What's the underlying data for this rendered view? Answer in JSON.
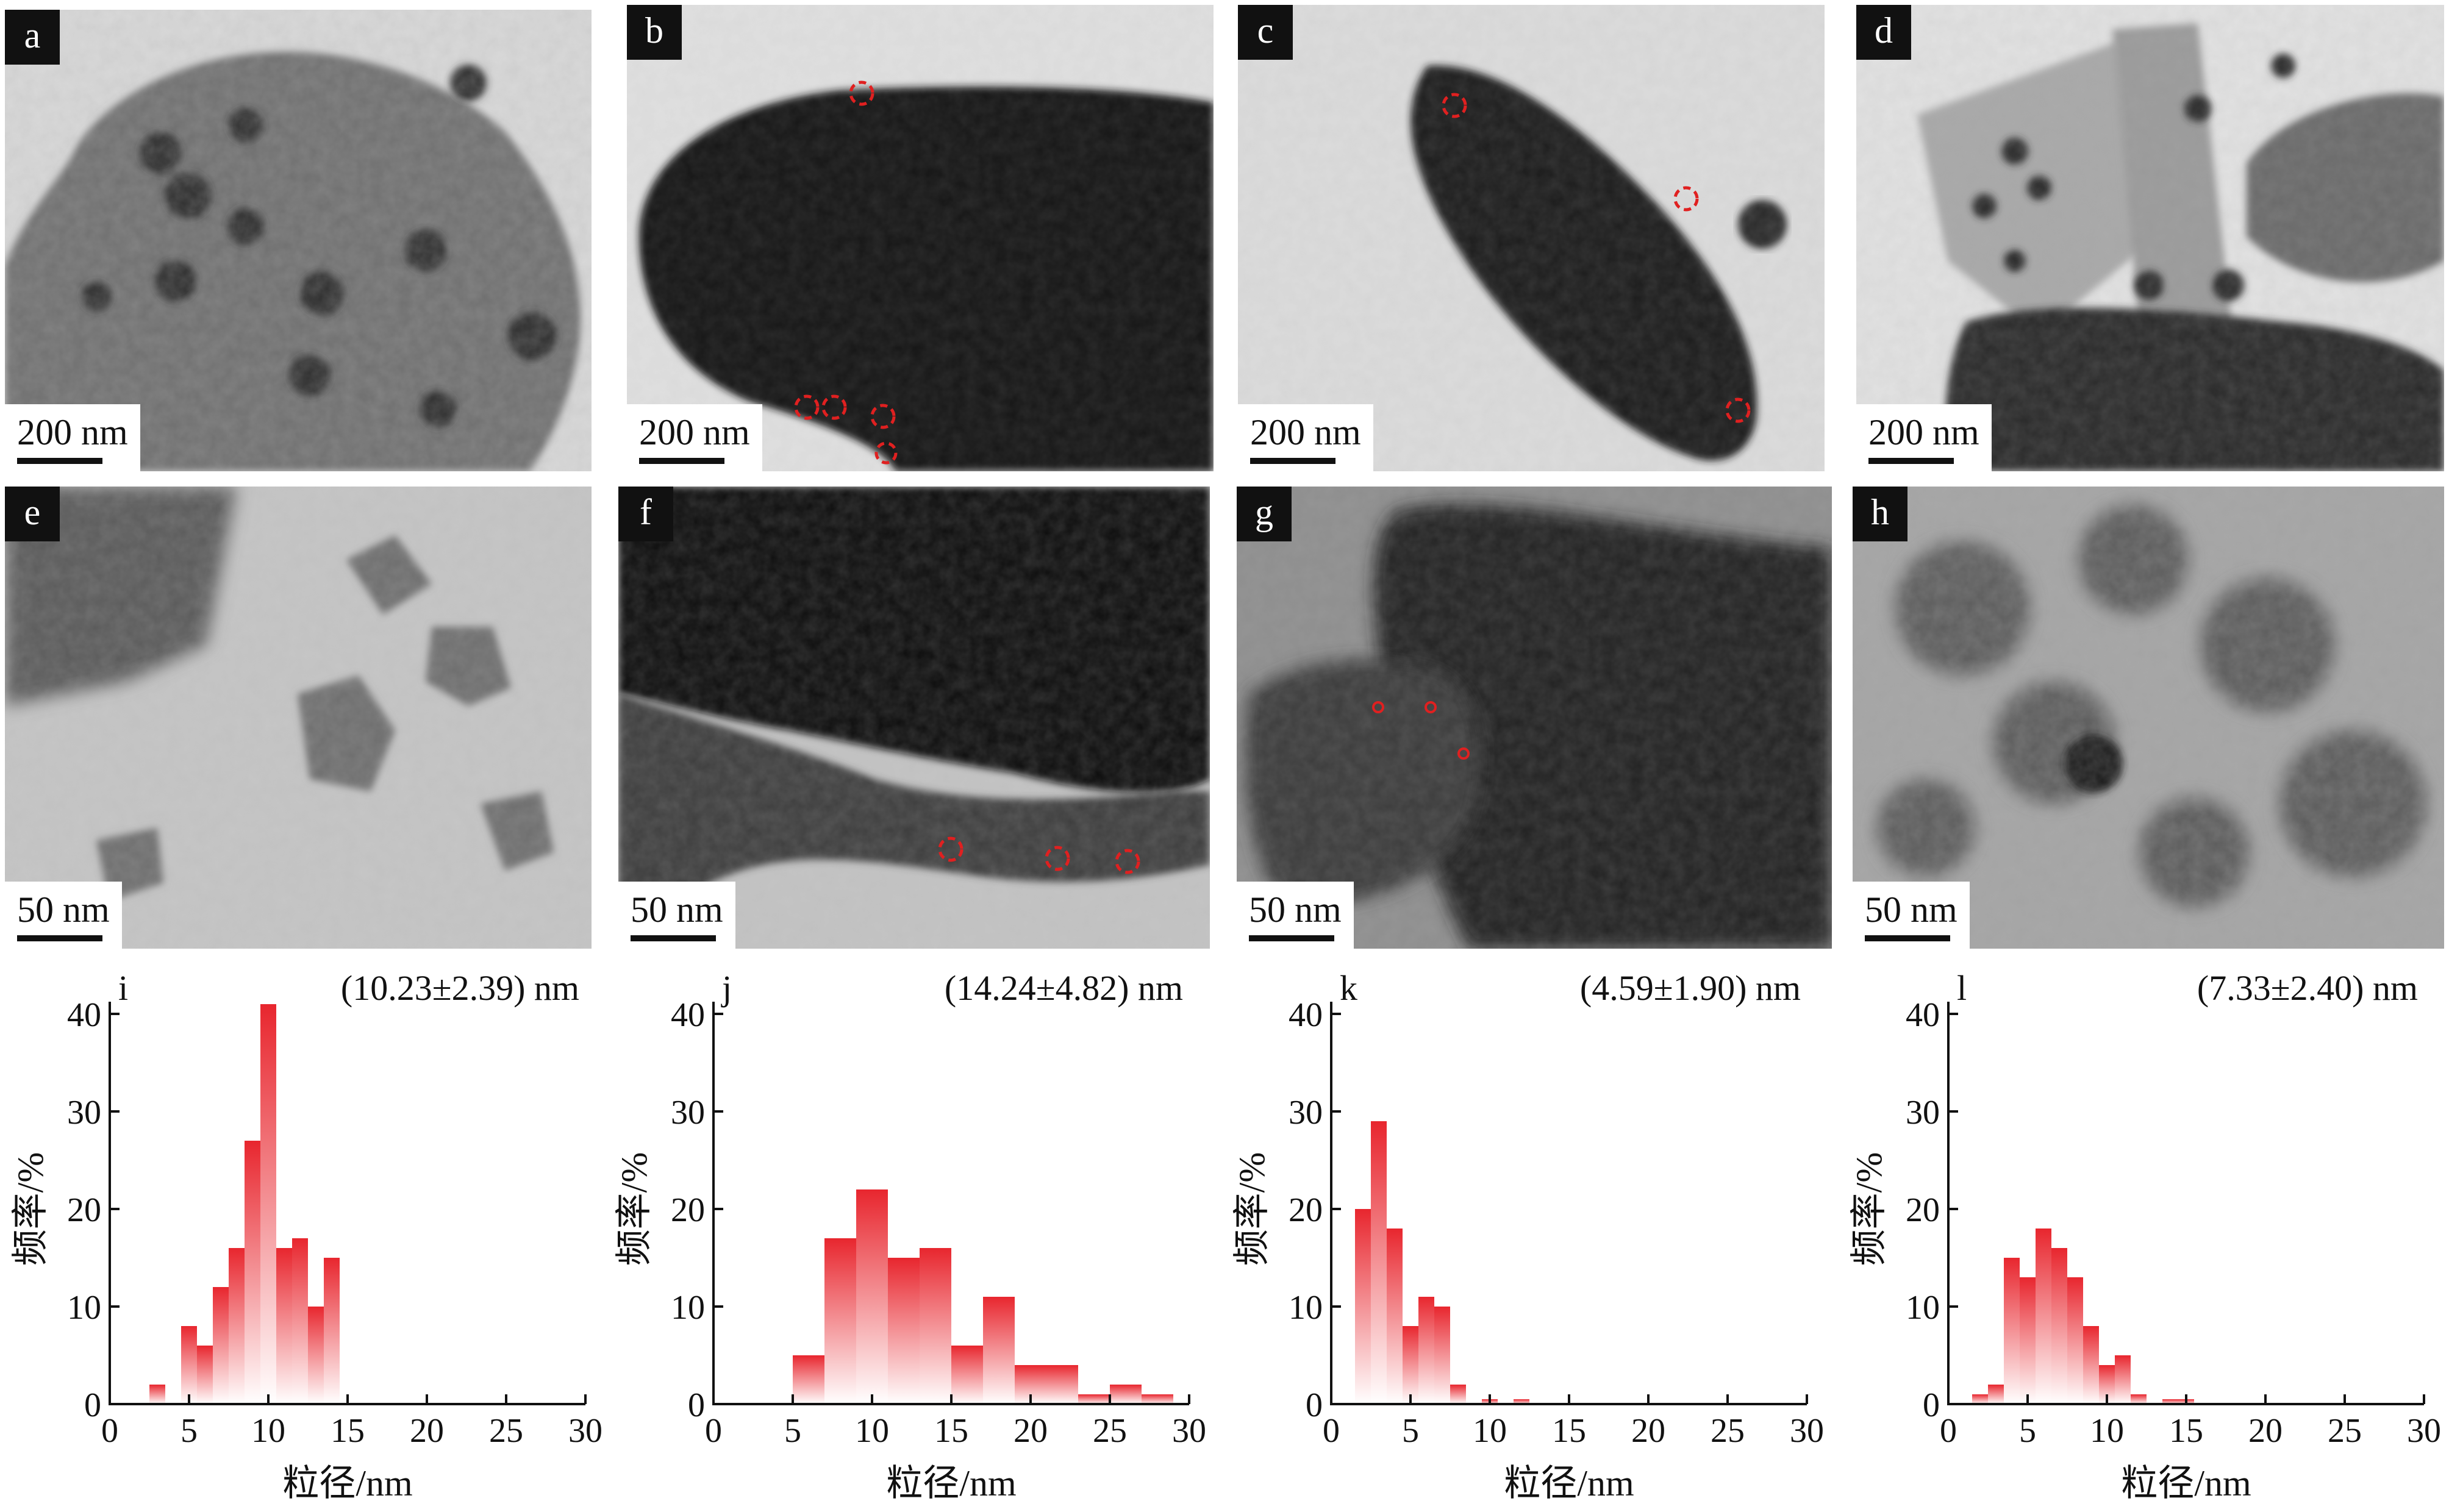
{
  "panels": [
    {
      "letter": "a",
      "scale_label": "200 nm"
    },
    {
      "letter": "b",
      "scale_label": "200 nm"
    },
    {
      "letter": "c",
      "scale_label": "200 nm"
    },
    {
      "letter": "d",
      "scale_label": "200 nm"
    },
    {
      "letter": "e",
      "scale_label": "50 nm"
    },
    {
      "letter": "f",
      "scale_label": "50 nm"
    },
    {
      "letter": "g",
      "scale_label": "50 nm"
    },
    {
      "letter": "h",
      "scale_label": "50 nm"
    }
  ],
  "colors": {
    "bar_top": "#e8262e",
    "bar_bottom": "#ffffff",
    "marker": "#e02020",
    "axis": "#111111"
  },
  "chart_data": [
    {
      "type": "bar",
      "panel": "i",
      "annotation": "(10.23±2.39) nm",
      "xlabel": "粒径/nm",
      "ylabel": "频率/%",
      "xlim": [
        0,
        30
      ],
      "ylim": [
        0,
        40
      ],
      "xticks": [
        0,
        5,
        10,
        15,
        20,
        25,
        30
      ],
      "yticks": [
        0,
        10,
        20,
        30,
        40
      ],
      "bin_width": 1,
      "x": [
        3,
        5,
        6,
        7,
        8,
        9,
        10,
        11,
        12,
        13,
        14
      ],
      "values": [
        2,
        8,
        6,
        12,
        16,
        27,
        41,
        16,
        17,
        10,
        15
      ]
    },
    {
      "type": "bar",
      "panel": "j",
      "annotation": "(14.24±4.82) nm",
      "xlabel": "粒径/nm",
      "ylabel": "频率/%",
      "xlim": [
        0,
        30
      ],
      "ylim": [
        0,
        40
      ],
      "xticks": [
        0,
        5,
        10,
        15,
        20,
        25,
        30
      ],
      "yticks": [
        0,
        10,
        20,
        30,
        40
      ],
      "bin_width": 2,
      "x": [
        6,
        8,
        10,
        12,
        14,
        16,
        18,
        20,
        22,
        24,
        26,
        28
      ],
      "values": [
        5,
        17,
        22,
        15,
        16,
        6,
        11,
        4,
        4,
        1,
        2,
        1
      ]
    },
    {
      "type": "bar",
      "panel": "k",
      "annotation": "(4.59±1.90) nm",
      "xlabel": "粒径/nm",
      "ylabel": "频率/%",
      "xlim": [
        0,
        30
      ],
      "ylim": [
        0,
        40
      ],
      "xticks": [
        0,
        5,
        10,
        15,
        20,
        25,
        30
      ],
      "yticks": [
        0,
        10,
        20,
        30,
        40
      ],
      "bin_width": 1,
      "x": [
        2,
        3,
        4,
        5,
        6,
        7,
        8,
        10,
        12
      ],
      "values": [
        20,
        29,
        18,
        8,
        11,
        10,
        2,
        0.5,
        0.5
      ]
    },
    {
      "type": "bar",
      "panel": "l",
      "annotation": "(7.33±2.40) nm",
      "xlabel": "粒径/nm",
      "ylabel": "频率/%",
      "xlim": [
        0,
        30
      ],
      "ylim": [
        0,
        40
      ],
      "xticks": [
        0,
        5,
        10,
        15,
        20,
        25,
        30
      ],
      "yticks": [
        0,
        10,
        20,
        30,
        40
      ],
      "bin_width": 1,
      "x": [
        2,
        3,
        4,
        5,
        6,
        7,
        8,
        9,
        10,
        11,
        12,
        14,
        15
      ],
      "values": [
        1,
        2,
        15,
        13,
        18,
        16,
        13,
        8,
        4,
        5,
        1,
        0.5,
        0.5
      ]
    }
  ]
}
